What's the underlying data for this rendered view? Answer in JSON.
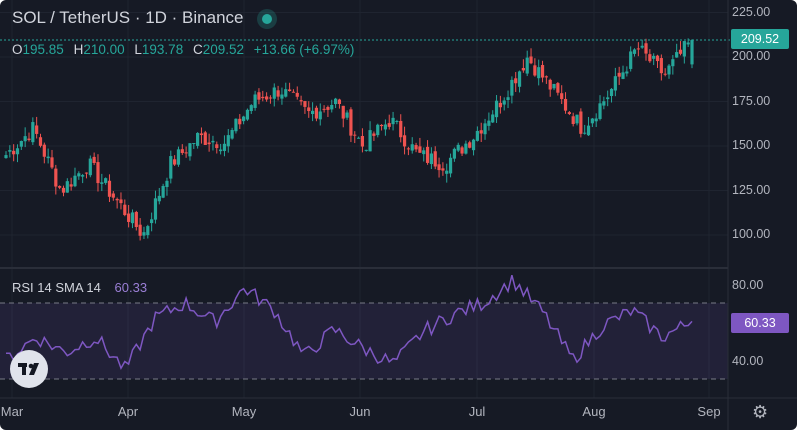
{
  "header": {
    "title": "SOL / TetherUS · 1D · Binance",
    "ohlc": {
      "o_label": "O",
      "o": "195.85",
      "h_label": "H",
      "h": "210.00",
      "l_label": "L",
      "l": "193.78",
      "c_label": "C",
      "c": "209.52",
      "change": "+13.66 (+6.97%)"
    }
  },
  "price_axis": {
    "ticks": [
      "225.00",
      "200.00",
      "175.00",
      "150.00",
      "125.00",
      "100.00"
    ],
    "last_price": "209.52"
  },
  "rsi": {
    "label": "RSI 14 SMA 14",
    "value": "60.33",
    "ticks": [
      "80.00",
      "40.00"
    ]
  },
  "time_axis": {
    "labels": [
      "Mar",
      "Apr",
      "May",
      "Jun",
      "Jul",
      "Aug",
      "Sep"
    ]
  },
  "colors": {
    "up": "#26a69a",
    "down": "#ef5350",
    "rsi": "#7e57c2",
    "background": "#161a25"
  },
  "icons": {
    "logo": "tradingview-logo-icon",
    "settings": "gear-icon"
  },
  "chart_data": [
    {
      "type": "candlestick",
      "title": "SOL / TetherUS · 1D · Binance",
      "x_range": [
        "Mar",
        "Sep"
      ],
      "ylim": [
        90,
        228
      ],
      "last_close": 209.52,
      "anchors_close": [
        [
          "Mar",
          145
        ],
        [
          "Mar",
          160
        ],
        [
          "Mar",
          125
        ],
        [
          "Mar",
          140
        ],
        [
          "Apr",
          120
        ],
        [
          "Apr",
          100
        ],
        [
          "Apr",
          140
        ],
        [
          "Apr",
          155
        ],
        [
          "May",
          152
        ],
        [
          "May",
          175
        ],
        [
          "May",
          182
        ],
        [
          "May",
          168
        ],
        [
          "Jun",
          175
        ],
        [
          "Jun",
          150
        ],
        [
          "Jun",
          165
        ],
        [
          "Jun",
          145
        ],
        [
          "Jul",
          140
        ],
        [
          "Jul",
          155
        ],
        [
          "Jul",
          175
        ],
        [
          "Jul",
          200
        ],
        [
          "Aug",
          180
        ],
        [
          "Aug",
          160
        ],
        [
          "Aug",
          180
        ],
        [
          "Aug",
          205
        ],
        [
          "Aug",
          190
        ],
        [
          "Aug",
          209.52
        ]
      ]
    },
    {
      "type": "line",
      "title": "RSI 14 SMA 14",
      "ylim": [
        25,
        90
      ],
      "bands": [
        70,
        30
      ],
      "last_value": 60.33,
      "anchors": [
        [
          "Mar",
          40
        ],
        [
          "Mar",
          52
        ],
        [
          "Mar",
          44
        ],
        [
          "Apr",
          52
        ],
        [
          "Apr",
          35
        ],
        [
          "Apr",
          62
        ],
        [
          "May",
          70
        ],
        [
          "May",
          60
        ],
        [
          "May",
          78
        ],
        [
          "May",
          66
        ],
        [
          "Jun",
          42
        ],
        [
          "Jun",
          56
        ],
        [
          "Jun",
          46
        ],
        [
          "Jun",
          38
        ],
        [
          "Jul",
          55
        ],
        [
          "Jul",
          64
        ],
        [
          "Jul",
          70
        ],
        [
          "Jul",
          82
        ],
        [
          "Aug",
          65
        ],
        [
          "Aug",
          40
        ],
        [
          "Aug",
          58
        ],
        [
          "Aug",
          66
        ],
        [
          "Aug",
          52
        ],
        [
          "Aug",
          60.33
        ]
      ]
    }
  ]
}
